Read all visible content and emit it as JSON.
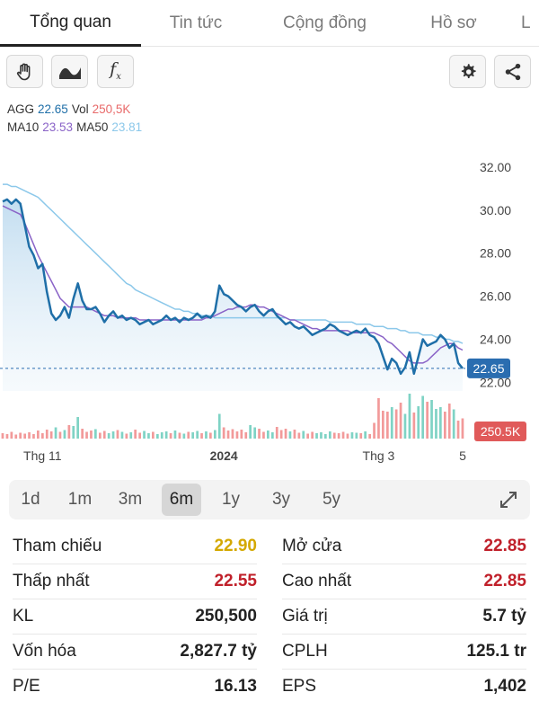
{
  "tabs": [
    {
      "label": "Tổng quan",
      "active": true
    },
    {
      "label": "Tin tức",
      "active": false
    },
    {
      "label": "Cộng đồng",
      "active": false
    },
    {
      "label": "Hồ sơ",
      "active": false
    },
    {
      "label": "L",
      "active": false
    }
  ],
  "toolbar": {
    "fx_label": "f"
  },
  "legend": {
    "symbol": "AGG",
    "price": "22.65",
    "vol_label": "Vol",
    "vol_value": "250,5K",
    "ma10_label": "MA10",
    "ma10_value": "23.53",
    "ma50_label": "MA50",
    "ma50_value": "23.81"
  },
  "colors": {
    "price_line": "#1f6fa8",
    "ma10": "#8a63c7",
    "ma50": "#8cc8ea",
    "vol_up": "#7fd3c5",
    "vol_down": "#f29a9a",
    "price_tag": "#2a6db0",
    "vol_tag": "#e05a5a",
    "yellow": "#d4a800",
    "red": "#c0202a"
  },
  "chart_data": {
    "type": "line",
    "ylim": [
      21.6,
      33.0
    ],
    "yticks": [
      "32.00",
      "30.00",
      "28.00",
      "26.00",
      "24.00",
      "22.00"
    ],
    "ytick_values": [
      32,
      30,
      28,
      26,
      24,
      22
    ],
    "xticks": [
      "Thg 11",
      "2024",
      "Thg 3",
      "5"
    ],
    "xtick_index": [
      9,
      50,
      85,
      104
    ],
    "last_price_label": "22.65",
    "last_price": 22.65,
    "vol_label": "250.5K",
    "n": 105,
    "close": [
      30.4,
      30.5,
      30.3,
      30.5,
      30.3,
      29.3,
      28.3,
      27.9,
      27.3,
      27.5,
      26.2,
      25.2,
      24.9,
      25.1,
      25.5,
      25.0,
      25.9,
      26.6,
      25.8,
      25.4,
      25.4,
      25.5,
      25.2,
      24.8,
      25.1,
      25.3,
      25.0,
      25.1,
      24.9,
      25.0,
      24.9,
      24.7,
      24.8,
      24.9,
      24.7,
      24.8,
      24.9,
      25.1,
      24.9,
      25.0,
      24.8,
      25.0,
      24.9,
      25.0,
      25.2,
      25.0,
      25.1,
      25.0,
      25.3,
      26.5,
      26.1,
      26.0,
      25.8,
      25.6,
      25.5,
      25.3,
      25.5,
      25.6,
      25.3,
      25.1,
      25.3,
      25.4,
      25.1,
      24.9,
      24.7,
      24.8,
      24.6,
      24.5,
      24.6,
      24.4,
      24.2,
      24.3,
      24.4,
      24.5,
      24.7,
      24.6,
      24.4,
      24.3,
      24.2,
      24.3,
      24.4,
      24.3,
      24.5,
      24.2,
      24.1,
      23.8,
      23.2,
      22.6,
      23.1,
      22.9,
      22.4,
      22.7,
      23.4,
      22.4,
      23.2,
      24.0,
      23.7,
      23.8,
      23.9,
      24.2,
      24.0,
      23.6,
      23.8,
      22.9,
      22.65
    ],
    "ma10": [
      30.2,
      30.1,
      30.0,
      29.9,
      29.8,
      29.4,
      28.9,
      28.4,
      27.9,
      27.5,
      27.1,
      26.7,
      26.3,
      25.9,
      25.7,
      25.5,
      25.5,
      25.5,
      25.5,
      25.5,
      25.4,
      25.3,
      25.2,
      25.1,
      25.1,
      25.1,
      25.0,
      25.0,
      25.0,
      25.0,
      25.0,
      24.9,
      24.9,
      24.9,
      24.9,
      24.9,
      24.9,
      24.9,
      24.9,
      24.9,
      24.9,
      24.9,
      24.9,
      24.9,
      24.9,
      24.9,
      25.0,
      25.0,
      25.1,
      25.2,
      25.3,
      25.4,
      25.4,
      25.5,
      25.5,
      25.5,
      25.6,
      25.6,
      25.5,
      25.5,
      25.4,
      25.3,
      25.2,
      25.1,
      25.0,
      24.9,
      24.9,
      24.8,
      24.7,
      24.6,
      24.5,
      24.5,
      24.4,
      24.4,
      24.4,
      24.4,
      24.4,
      24.4,
      24.4,
      24.3,
      24.3,
      24.3,
      24.3,
      24.3,
      24.3,
      24.2,
      24.1,
      23.9,
      23.8,
      23.6,
      23.4,
      23.2,
      23.0,
      22.9,
      22.9,
      22.9,
      23.0,
      23.2,
      23.4,
      23.6,
      23.7,
      23.8,
      23.8,
      23.6,
      23.5
    ],
    "ma50": [
      31.2,
      31.2,
      31.1,
      31.1,
      31.0,
      30.9,
      30.8,
      30.7,
      30.6,
      30.4,
      30.2,
      30.0,
      29.8,
      29.6,
      29.4,
      29.2,
      29.0,
      28.8,
      28.6,
      28.4,
      28.2,
      28.0,
      27.8,
      27.6,
      27.4,
      27.2,
      27.0,
      26.8,
      26.6,
      26.5,
      26.3,
      26.2,
      26.1,
      26.0,
      25.9,
      25.8,
      25.7,
      25.6,
      25.5,
      25.4,
      25.4,
      25.3,
      25.3,
      25.2,
      25.2,
      25.1,
      25.1,
      25.1,
      25.0,
      25.0,
      25.0,
      25.0,
      25.0,
      25.0,
      25.0,
      25.0,
      25.0,
      25.0,
      25.0,
      25.0,
      25.0,
      25.0,
      25.0,
      25.0,
      25.0,
      24.9,
      24.9,
      24.9,
      24.9,
      24.9,
      24.9,
      24.9,
      24.9,
      24.9,
      24.8,
      24.8,
      24.8,
      24.8,
      24.8,
      24.8,
      24.7,
      24.7,
      24.7,
      24.7,
      24.6,
      24.6,
      24.6,
      24.5,
      24.5,
      24.5,
      24.4,
      24.4,
      24.3,
      24.3,
      24.3,
      24.2,
      24.2,
      24.2,
      24.1,
      24.1,
      24.0,
      24.0,
      23.9,
      23.9,
      23.81
    ],
    "volume": [
      0.12,
      0.1,
      0.15,
      0.09,
      0.13,
      0.11,
      0.14,
      0.1,
      0.18,
      0.12,
      0.2,
      0.16,
      0.25,
      0.15,
      0.19,
      0.3,
      0.28,
      0.48,
      0.22,
      0.15,
      0.18,
      0.21,
      0.13,
      0.17,
      0.12,
      0.16,
      0.19,
      0.15,
      0.11,
      0.14,
      0.2,
      0.13,
      0.17,
      0.12,
      0.15,
      0.1,
      0.14,
      0.16,
      0.12,
      0.18,
      0.13,
      0.11,
      0.15,
      0.14,
      0.17,
      0.12,
      0.16,
      0.13,
      0.19,
      0.55,
      0.25,
      0.18,
      0.21,
      0.16,
      0.2,
      0.14,
      0.3,
      0.25,
      0.22,
      0.15,
      0.18,
      0.14,
      0.26,
      0.19,
      0.22,
      0.16,
      0.2,
      0.13,
      0.17,
      0.11,
      0.15,
      0.12,
      0.14,
      0.1,
      0.16,
      0.13,
      0.12,
      0.15,
      0.11,
      0.14,
      0.13,
      0.12,
      0.16,
      0.1,
      0.35,
      0.9,
      0.62,
      0.6,
      0.7,
      0.65,
      0.8,
      0.55,
      1.0,
      0.58,
      0.72,
      0.95,
      0.82,
      0.86,
      0.66,
      0.7,
      0.6,
      0.78,
      0.65,
      0.4,
      0.45
    ],
    "vol_up": [
      0,
      0,
      0,
      0,
      0,
      0,
      0,
      0,
      0,
      0,
      0,
      0,
      1,
      0,
      1,
      0,
      1,
      1,
      0,
      0,
      0,
      1,
      0,
      0,
      1,
      1,
      0,
      1,
      0,
      1,
      0,
      0,
      1,
      1,
      0,
      1,
      1,
      1,
      0,
      1,
      0,
      1,
      0,
      1,
      1,
      0,
      1,
      0,
      1,
      1,
      0,
      0,
      0,
      0,
      0,
      0,
      1,
      1,
      0,
      0,
      1,
      1,
      0,
      0,
      0,
      1,
      0,
      0,
      1,
      0,
      0,
      1,
      1,
      1,
      1,
      0,
      0,
      0,
      0,
      1,
      1,
      0,
      1,
      0,
      0,
      0,
      0,
      0,
      1,
      0,
      0,
      1,
      1,
      0,
      1,
      1,
      0,
      1,
      1,
      1,
      0,
      0,
      1,
      0,
      0
    ]
  },
  "ranges": [
    {
      "label": "1d",
      "active": false
    },
    {
      "label": "1m",
      "active": false
    },
    {
      "label": "3m",
      "active": false
    },
    {
      "label": "6m",
      "active": true
    },
    {
      "label": "1y",
      "active": false
    },
    {
      "label": "3y",
      "active": false
    },
    {
      "label": "5y",
      "active": false
    }
  ],
  "stats": [
    {
      "label": "Tham chiếu",
      "value": "22.90",
      "color": "yellow"
    },
    {
      "label": "Mở cửa",
      "value": "22.85",
      "color": "red"
    },
    {
      "label": "Thấp nhất",
      "value": "22.55",
      "color": "red"
    },
    {
      "label": "Cao nhất",
      "value": "22.85",
      "color": "red"
    },
    {
      "label": "KL",
      "value": "250,500",
      "color": "default"
    },
    {
      "label": "Giá trị",
      "value": "5.7 tỷ",
      "color": "default"
    },
    {
      "label": "Vốn hóa",
      "value": "2,827.7 tỷ",
      "color": "default"
    },
    {
      "label": "CPLH",
      "value": "125.1 tr",
      "color": "default"
    },
    {
      "label": "P/E",
      "value": "16.13",
      "color": "default"
    },
    {
      "label": "EPS",
      "value": "1,402",
      "color": "default"
    }
  ]
}
